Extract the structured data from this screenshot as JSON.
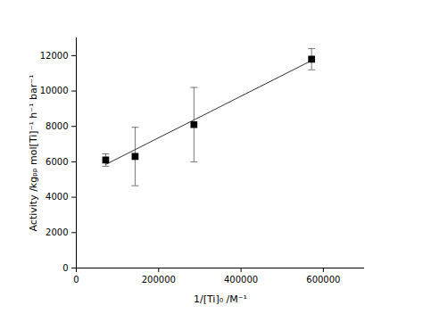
{
  "chart_data": {
    "type": "scatter",
    "x_label": "1/[Ti]₀ /M⁻¹",
    "y_label": "Activity /kgₚₚ mol[Ti]⁻¹ h⁻¹ bar⁻¹",
    "x": [
      71400,
      142800,
      285700,
      571400
    ],
    "values": [
      6100,
      6300,
      8100,
      11800
    ],
    "error": [
      350,
      1650,
      2100,
      600
    ],
    "color": "#000000",
    "marker": "square",
    "fit_line": {
      "x": [
        71400,
        571400
      ],
      "values": [
        5850,
        11720
      ],
      "color": "#333333",
      "line_style": "solid"
    },
    "xlim": [
      0,
      700000
    ],
    "xticks": [
      0,
      200000,
      400000,
      600000
    ],
    "ylim": [
      0,
      13000
    ],
    "yticks": [
      0,
      2000,
      4000,
      6000,
      8000,
      10000,
      12000
    ],
    "grid": false
  }
}
